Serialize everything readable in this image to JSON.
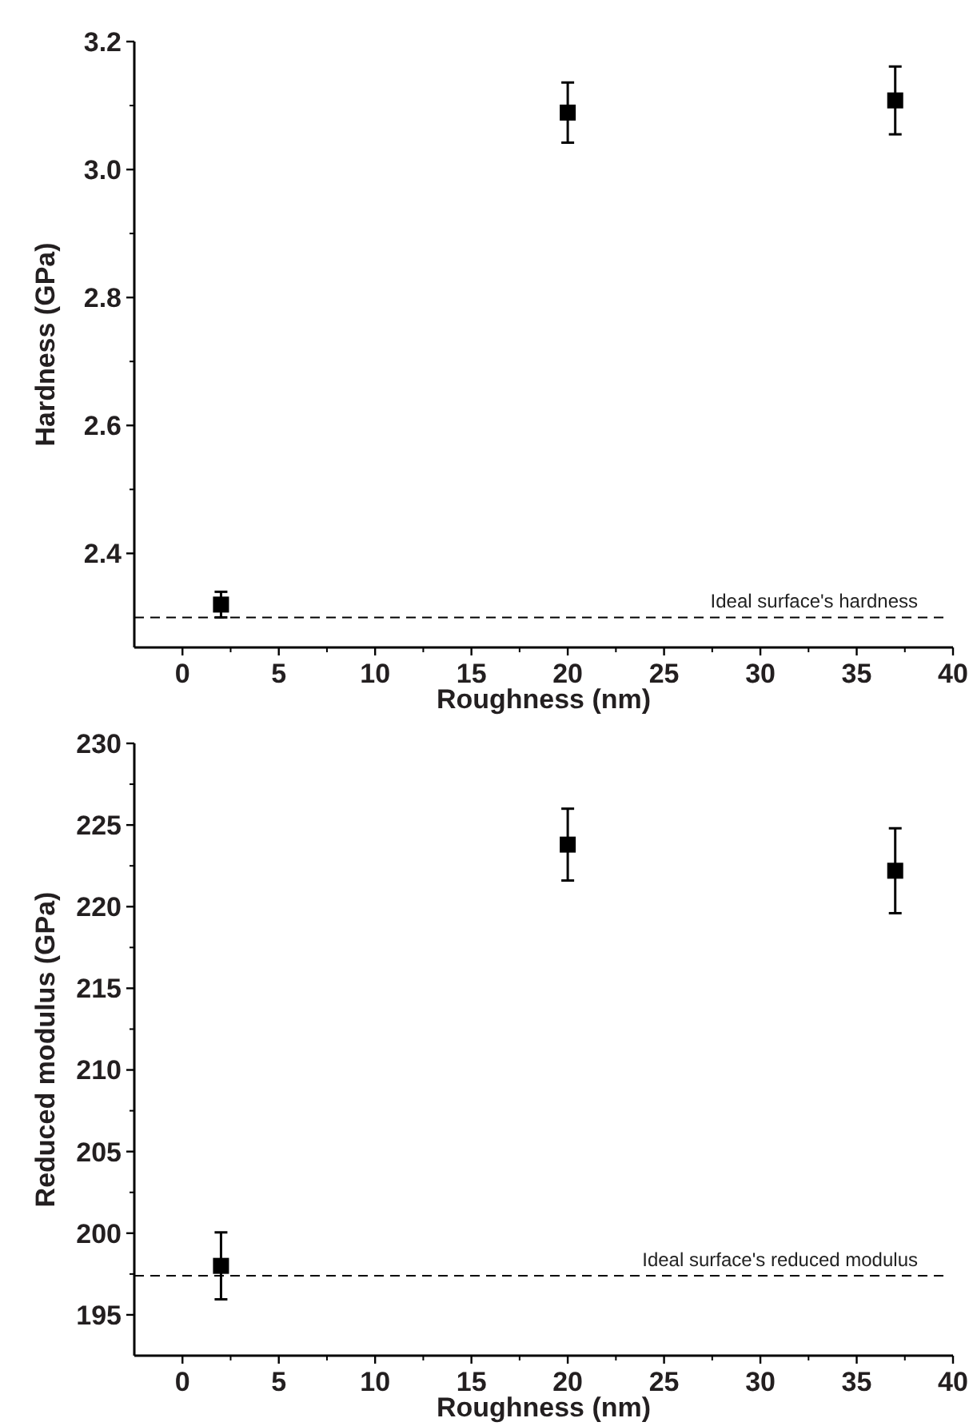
{
  "chart_data": [
    {
      "type": "scatter",
      "xlabel": "Roughness (nm)",
      "ylabel": "Hardness (GPa)",
      "x": [
        2,
        20,
        37
      ],
      "values": [
        2.32,
        3.089,
        3.108
      ],
      "errors": [
        0.02,
        0.047,
        0.053
      ],
      "color": "#000000",
      "marker": "square",
      "xlim": [
        -2.5,
        40
      ],
      "xticks": [
        0,
        5,
        10,
        15,
        20,
        25,
        30,
        35,
        40
      ],
      "ylim": [
        2.253,
        3.2
      ],
      "yticks": [
        {
          "value": 2.4,
          "label": "2.4"
        },
        {
          "value": 2.6,
          "label": "2.6"
        },
        {
          "value": 2.8,
          "label": "2.8"
        },
        {
          "value": 3.0,
          "label": "3.0"
        },
        {
          "value": 3.2,
          "label": "3.2"
        }
      ],
      "ref_lines": [
        {
          "axis": "y",
          "value": 2.3,
          "label": "Ideal surface's hardness",
          "line_style": "dashed"
        }
      ],
      "grid": false
    },
    {
      "type": "scatter",
      "xlabel": "Roughness (nm)",
      "ylabel": "Reduced modulus (GPa)",
      "x": [
        2,
        20,
        37
      ],
      "values": [
        198.0,
        223.8,
        222.2
      ],
      "errors": [
        2.05,
        2.2,
        2.6
      ],
      "color": "#000000",
      "marker": "square",
      "xlim": [
        -2.5,
        40
      ],
      "xticks": [
        0,
        5,
        10,
        15,
        20,
        25,
        30,
        35,
        40
      ],
      "ylim": [
        192.5,
        230
      ],
      "yticks": [
        195,
        200,
        205,
        210,
        215,
        220,
        225,
        230
      ],
      "ref_lines": [
        {
          "axis": "y",
          "value": 197.4,
          "label": "Ideal surface's reduced modulus",
          "line_style": "dashed"
        }
      ],
      "grid": false
    }
  ]
}
